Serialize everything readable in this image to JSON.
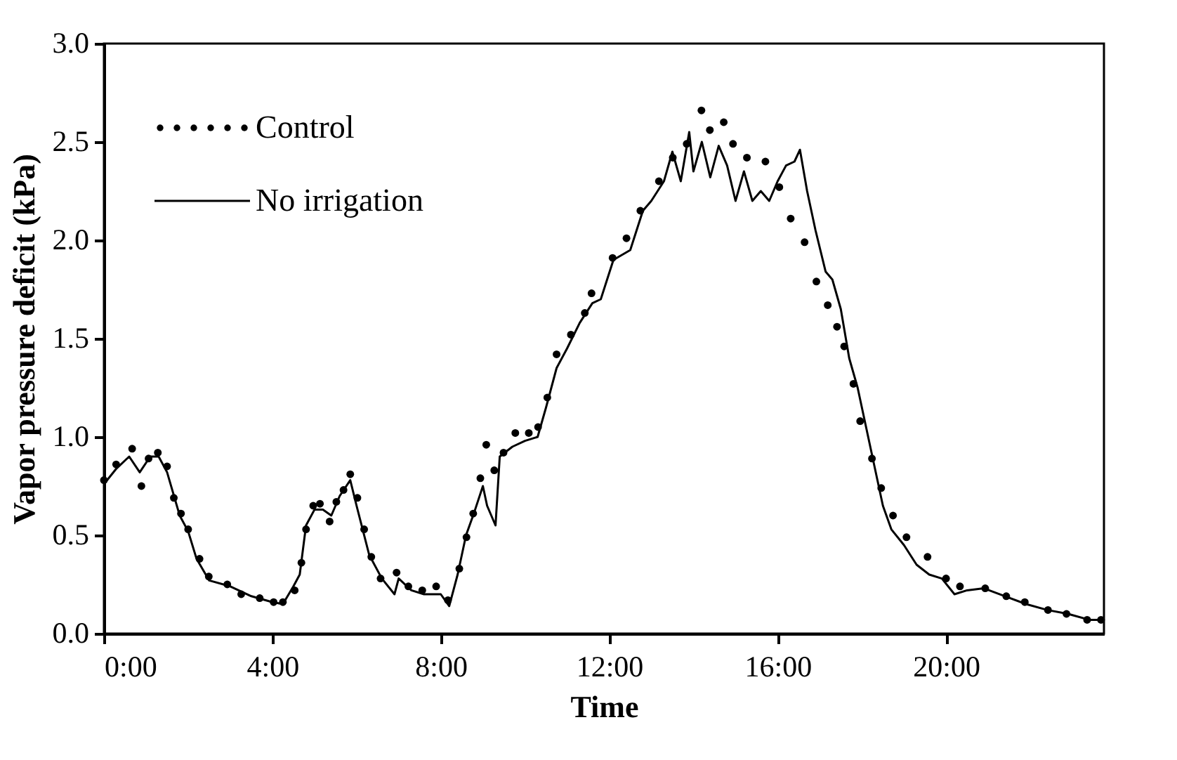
{
  "chart_data": {
    "type": "line",
    "xlabel": "Time",
    "ylabel": "Vapor pressure deficit (kPa)",
    "xlim": [
      0,
      23.75
    ],
    "xticks": [
      {
        "value": 0,
        "label": "0:00"
      },
      {
        "value": 4,
        "label": "4:00"
      },
      {
        "value": 8,
        "label": "8:00"
      },
      {
        "value": 12,
        "label": "12:00"
      },
      {
        "value": 16,
        "label": "16:00"
      },
      {
        "value": 20,
        "label": "20:00"
      }
    ],
    "ylim": [
      0,
      3.0
    ],
    "yticks": [
      {
        "value": 0,
        "label": "0.0"
      },
      {
        "value": 0.5,
        "label": "0.5"
      },
      {
        "value": 1.0,
        "label": "1.0"
      },
      {
        "value": 1.5,
        "label": "1.5"
      },
      {
        "value": 2.0,
        "label": "2.0"
      },
      {
        "value": 2.5,
        "label": "2.5"
      },
      {
        "value": 3.0,
        "label": "3.0"
      }
    ],
    "grid": false,
    "legend": "top left",
    "series": [
      {
        "name": "Control",
        "type": "scatter",
        "marker": "circle",
        "color": "#000000",
        "x": [
          0,
          0.29,
          0.67,
          0.89,
          1.06,
          1.28,
          1.5,
          1.66,
          1.83,
          2.0,
          2.27,
          2.49,
          2.93,
          3.26,
          3.7,
          4.03,
          4.25,
          4.53,
          4.69,
          4.8,
          4.97,
          5.13,
          5.36,
          5.52,
          5.69,
          5.85,
          6.02,
          6.18,
          6.35,
          6.57,
          6.95,
          7.23,
          7.56,
          7.89,
          8.17,
          8.44,
          8.61,
          8.77,
          8.94,
          9.08,
          9.27,
          9.49,
          9.77,
          10.09,
          10.31,
          10.53,
          10.75,
          11.09,
          11.42,
          11.58,
          12.08,
          12.41,
          12.74,
          13.18,
          13.51,
          13.84,
          14.19,
          14.39,
          14.72,
          14.94,
          15.27,
          15.71,
          16.04,
          16.31,
          16.64,
          16.92,
          17.19,
          17.41,
          17.58,
          17.8,
          17.96,
          18.24,
          18.46,
          18.74,
          19.06,
          19.56,
          20.0,
          20.33,
          20.93,
          21.43,
          21.87,
          22.42,
          22.86,
          23.35,
          23.68
        ],
        "values": [
          0.78,
          0.86,
          0.94,
          0.75,
          0.89,
          0.92,
          0.85,
          0.69,
          0.61,
          0.53,
          0.38,
          0.29,
          0.25,
          0.2,
          0.18,
          0.16,
          0.16,
          0.22,
          0.36,
          0.53,
          0.65,
          0.66,
          0.57,
          0.67,
          0.73,
          0.81,
          0.69,
          0.53,
          0.39,
          0.28,
          0.31,
          0.24,
          0.22,
          0.24,
          0.17,
          0.33,
          0.49,
          0.61,
          0.79,
          0.96,
          0.83,
          0.92,
          1.02,
          1.02,
          1.05,
          1.2,
          1.42,
          1.52,
          1.63,
          1.73,
          1.91,
          2.01,
          2.15,
          2.3,
          2.42,
          2.49,
          2.66,
          2.56,
          2.6,
          2.49,
          2.42,
          2.4,
          2.27,
          2.11,
          1.99,
          1.79,
          1.67,
          1.56,
          1.46,
          1.27,
          1.08,
          0.89,
          0.74,
          0.6,
          0.49,
          0.39,
          0.28,
          0.24,
          0.23,
          0.19,
          0.16,
          0.12,
          0.1,
          0.07,
          0.07
        ]
      },
      {
        "name": "No irrigation",
        "line_style": "solid",
        "color": "#000000",
        "x": [
          0,
          0.3,
          0.6,
          0.85,
          1.1,
          1.3,
          1.5,
          1.8,
          2.0,
          2.2,
          2.5,
          3.0,
          3.5,
          4.0,
          4.25,
          4.5,
          4.65,
          4.8,
          5.0,
          5.2,
          5.4,
          5.6,
          5.85,
          6.0,
          6.3,
          6.6,
          6.9,
          7.0,
          7.3,
          7.6,
          8.0,
          8.2,
          8.4,
          8.6,
          8.8,
          9.0,
          9.1,
          9.3,
          9.4,
          9.7,
          10.0,
          10.3,
          10.5,
          10.75,
          11.0,
          11.3,
          11.6,
          11.8,
          12.1,
          12.5,
          12.8,
          13.0,
          13.3,
          13.5,
          13.7,
          13.9,
          14.0,
          14.2,
          14.4,
          14.6,
          14.8,
          15.0,
          15.2,
          15.4,
          15.6,
          15.8,
          16.0,
          16.2,
          16.4,
          16.53,
          16.7,
          16.9,
          17.14,
          17.3,
          17.5,
          17.7,
          17.9,
          18.1,
          18.3,
          18.5,
          18.7,
          19.0,
          19.3,
          19.6,
          19.9,
          20.2,
          20.5,
          20.9,
          21.4,
          21.9,
          22.4,
          22.9,
          23.4,
          23.7
        ],
        "values": [
          0.76,
          0.84,
          0.9,
          0.82,
          0.9,
          0.9,
          0.82,
          0.6,
          0.52,
          0.38,
          0.27,
          0.24,
          0.19,
          0.16,
          0.15,
          0.24,
          0.3,
          0.55,
          0.63,
          0.63,
          0.6,
          0.7,
          0.78,
          0.65,
          0.4,
          0.28,
          0.2,
          0.28,
          0.22,
          0.2,
          0.2,
          0.14,
          0.3,
          0.5,
          0.62,
          0.75,
          0.65,
          0.55,
          0.9,
          0.95,
          0.98,
          1.0,
          1.15,
          1.35,
          1.45,
          1.58,
          1.68,
          1.7,
          1.9,
          1.95,
          2.15,
          2.2,
          2.3,
          2.45,
          2.3,
          2.55,
          2.35,
          2.5,
          2.32,
          2.48,
          2.38,
          2.2,
          2.35,
          2.2,
          2.25,
          2.2,
          2.3,
          2.38,
          2.4,
          2.46,
          2.25,
          2.05,
          1.84,
          1.8,
          1.65,
          1.4,
          1.25,
          1.05,
          0.85,
          0.65,
          0.53,
          0.45,
          0.35,
          0.3,
          0.28,
          0.2,
          0.22,
          0.23,
          0.19,
          0.15,
          0.12,
          0.1,
          0.07,
          0.07
        ]
      }
    ]
  }
}
